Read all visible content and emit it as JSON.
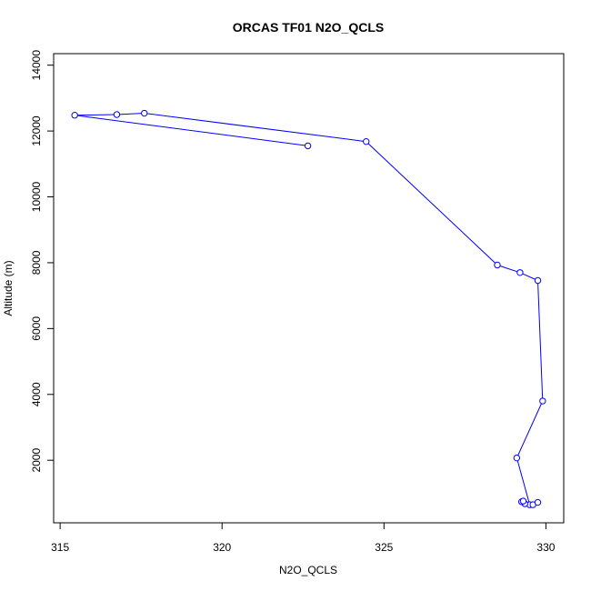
{
  "chart_data": {
    "type": "line",
    "title": "ORCAS TF01 N2O_QCLS",
    "xlabel": "N2O_QCLS",
    "ylabel": "Altitude (m)",
    "xlim": [
      314.8,
      330.55
    ],
    "ylim": [
      100,
      14350
    ],
    "xticks": [
      315,
      320,
      325,
      330
    ],
    "yticks": [
      2000,
      4000,
      6000,
      8000,
      10000,
      12000,
      14000
    ],
    "series_color": "#0000ff",
    "marker": "open-circle",
    "points": [
      {
        "x": 322.65,
        "y": 11550
      },
      {
        "x": 315.45,
        "y": 12480
      },
      {
        "x": 316.75,
        "y": 12500
      },
      {
        "x": 317.6,
        "y": 12540
      },
      {
        "x": 324.45,
        "y": 11680
      },
      {
        "x": 328.5,
        "y": 7930
      },
      {
        "x": 329.2,
        "y": 7700
      },
      {
        "x": 329.75,
        "y": 7460
      },
      {
        "x": 329.9,
        "y": 3800
      },
      {
        "x": 329.1,
        "y": 2070
      },
      {
        "x": 329.5,
        "y": 650
      },
      {
        "x": 329.35,
        "y": 680
      },
      {
        "x": 329.25,
        "y": 740
      },
      {
        "x": 329.3,
        "y": 760
      },
      {
        "x": 329.6,
        "y": 650
      },
      {
        "x": 329.75,
        "y": 720
      }
    ]
  }
}
